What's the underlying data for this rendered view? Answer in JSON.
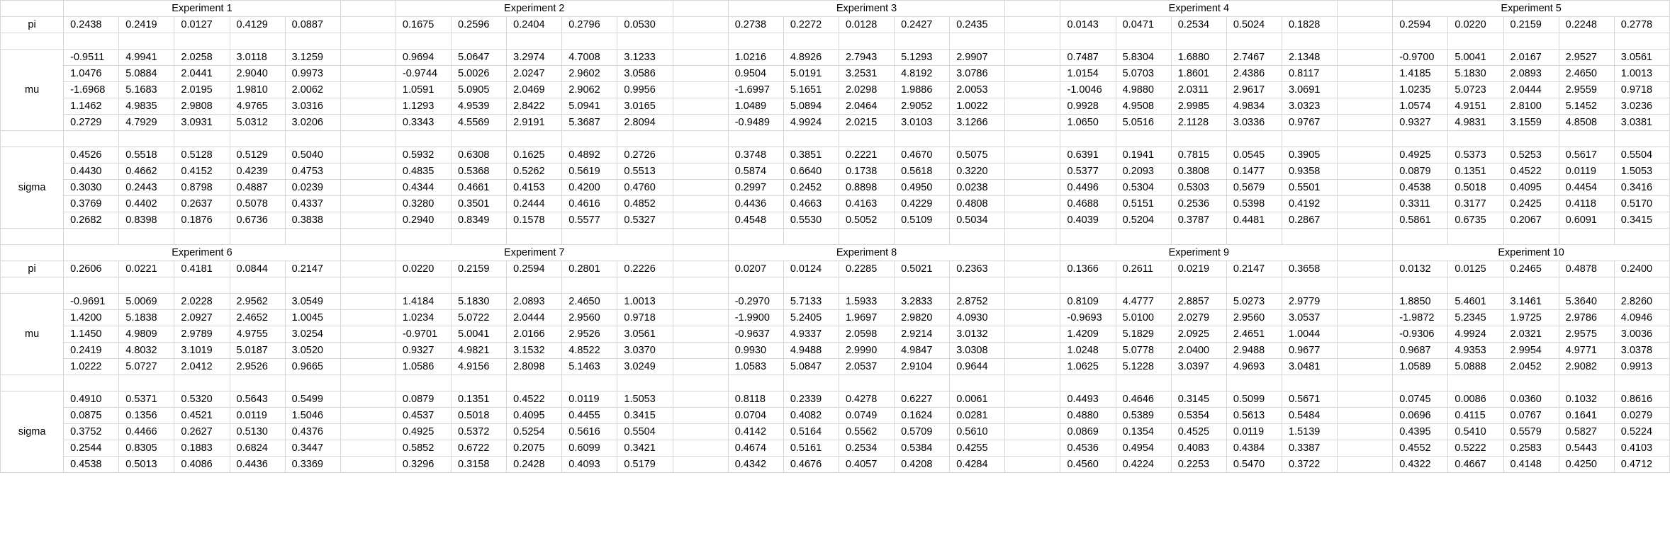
{
  "row_labels": {
    "pi": "pi",
    "mu": "mu",
    "sigma": "sigma"
  },
  "experiments": [
    {
      "title": "Experiment 1",
      "pi": [
        "0.2438",
        "0.2419",
        "0.0127",
        "0.4129",
        "0.0887"
      ],
      "mu": [
        [
          "-0.9511",
          "4.9941",
          "2.0258",
          "3.0118",
          "3.1259"
        ],
        [
          "1.0476",
          "5.0884",
          "2.0441",
          "2.9040",
          "0.9973"
        ],
        [
          "-1.6968",
          "5.1683",
          "2.0195",
          "1.9810",
          "2.0062"
        ],
        [
          "1.1462",
          "4.9835",
          "2.9808",
          "4.9765",
          "3.0316"
        ],
        [
          "0.2729",
          "4.7929",
          "3.0931",
          "5.0312",
          "3.0206"
        ]
      ],
      "sigma": [
        [
          "0.4526",
          "0.5518",
          "0.5128",
          "0.5129",
          "0.5040"
        ],
        [
          "0.4430",
          "0.4662",
          "0.4152",
          "0.4239",
          "0.4753"
        ],
        [
          "0.3030",
          "0.2443",
          "0.8798",
          "0.4887",
          "0.0239"
        ],
        [
          "0.3769",
          "0.4402",
          "0.2637",
          "0.5078",
          "0.4337"
        ],
        [
          "0.2682",
          "0.8398",
          "0.1876",
          "0.6736",
          "0.3838"
        ]
      ]
    },
    {
      "title": "Experiment 2",
      "pi": [
        "0.1675",
        "0.2596",
        "0.2404",
        "0.2796",
        "0.0530"
      ],
      "mu": [
        [
          "0.9694",
          "5.0647",
          "3.2974",
          "4.7008",
          "3.1233"
        ],
        [
          "-0.9744",
          "5.0026",
          "2.0247",
          "2.9602",
          "3.0586"
        ],
        [
          "1.0591",
          "5.0905",
          "2.0469",
          "2.9062",
          "0.9956"
        ],
        [
          "1.1293",
          "4.9539",
          "2.8422",
          "5.0941",
          "3.0165"
        ],
        [
          "0.3343",
          "4.5569",
          "2.9191",
          "5.3687",
          "2.8094"
        ]
      ],
      "sigma": [
        [
          "0.5932",
          "0.6308",
          "0.1625",
          "0.4892",
          "0.2726"
        ],
        [
          "0.4835",
          "0.5368",
          "0.5262",
          "0.5619",
          "0.5513"
        ],
        [
          "0.4344",
          "0.4661",
          "0.4153",
          "0.4200",
          "0.4760"
        ],
        [
          "0.3280",
          "0.3501",
          "0.2444",
          "0.4616",
          "0.4852"
        ],
        [
          "0.2940",
          "0.8349",
          "0.1578",
          "0.5577",
          "0.5327"
        ]
      ]
    },
    {
      "title": "Experiment 3",
      "pi": [
        "0.2738",
        "0.2272",
        "0.0128",
        "0.2427",
        "0.2435"
      ],
      "mu": [
        [
          "1.0216",
          "4.8926",
          "2.7943",
          "5.1293",
          "2.9907"
        ],
        [
          "0.9504",
          "5.0191",
          "3.2531",
          "4.8192",
          "3.0786"
        ],
        [
          "-1.6997",
          "5.1651",
          "2.0298",
          "1.9886",
          "2.0053"
        ],
        [
          "1.0489",
          "5.0894",
          "2.0464",
          "2.9052",
          "1.0022"
        ],
        [
          "-0.9489",
          "4.9924",
          "2.0215",
          "3.0103",
          "3.1266"
        ]
      ],
      "sigma": [
        [
          "0.3748",
          "0.3851",
          "0.2221",
          "0.4670",
          "0.5075"
        ],
        [
          "0.5874",
          "0.6640",
          "0.1738",
          "0.5618",
          "0.3220"
        ],
        [
          "0.2997",
          "0.2452",
          "0.8898",
          "0.4950",
          "0.0238"
        ],
        [
          "0.4436",
          "0.4663",
          "0.4163",
          "0.4229",
          "0.4808"
        ],
        [
          "0.4548",
          "0.5530",
          "0.5052",
          "0.5109",
          "0.5034"
        ]
      ]
    },
    {
      "title": "Experiment 4",
      "pi": [
        "0.0143",
        "0.0471",
        "0.2534",
        "0.5024",
        "0.1828"
      ],
      "mu": [
        [
          "0.7487",
          "5.8304",
          "1.6880",
          "2.7467",
          "2.1348"
        ],
        [
          "1.0154",
          "5.0703",
          "1.8601",
          "2.4386",
          "0.8117"
        ],
        [
          "-1.0046",
          "4.9880",
          "2.0311",
          "2.9617",
          "3.0691"
        ],
        [
          "0.9928",
          "4.9508",
          "2.9985",
          "4.9834",
          "3.0323"
        ],
        [
          "1.0650",
          "5.0516",
          "2.1128",
          "3.0336",
          "0.9767"
        ]
      ],
      "sigma": [
        [
          "0.6391",
          "0.1941",
          "0.7815",
          "0.0545",
          "0.3905"
        ],
        [
          "0.5377",
          "0.2093",
          "0.3808",
          "0.1477",
          "0.9358"
        ],
        [
          "0.4496",
          "0.5304",
          "0.5303",
          "0.5679",
          "0.5501"
        ],
        [
          "0.4688",
          "0.5151",
          "0.2536",
          "0.5398",
          "0.4192"
        ],
        [
          "0.4039",
          "0.5204",
          "0.3787",
          "0.4481",
          "0.2867"
        ]
      ]
    },
    {
      "title": "Experiment 5",
      "pi": [
        "0.2594",
        "0.0220",
        "0.2159",
        "0.2248",
        "0.2778"
      ],
      "mu": [
        [
          "-0.9700",
          "5.0041",
          "2.0167",
          "2.9527",
          "3.0561"
        ],
        [
          "1.4185",
          "5.1830",
          "2.0893",
          "2.4650",
          "1.0013"
        ],
        [
          "1.0235",
          "5.0723",
          "2.0444",
          "2.9559",
          "0.9718"
        ],
        [
          "1.0574",
          "4.9151",
          "2.8100",
          "5.1452",
          "3.0236"
        ],
        [
          "0.9327",
          "4.9831",
          "3.1559",
          "4.8508",
          "3.0381"
        ]
      ],
      "sigma": [
        [
          "0.4925",
          "0.5373",
          "0.5253",
          "0.5617",
          "0.5504"
        ],
        [
          "0.0879",
          "0.1351",
          "0.4522",
          "0.0119",
          "1.5053"
        ],
        [
          "0.4538",
          "0.5018",
          "0.4095",
          "0.4454",
          "0.3416"
        ],
        [
          "0.3311",
          "0.3177",
          "0.2425",
          "0.4118",
          "0.5170"
        ],
        [
          "0.5861",
          "0.6735",
          "0.2067",
          "0.6091",
          "0.3415"
        ]
      ]
    },
    {
      "title": "Experiment 6",
      "pi": [
        "0.2606",
        "0.0221",
        "0.4181",
        "0.0844",
        "0.2147"
      ],
      "mu": [
        [
          "-0.9691",
          "5.0069",
          "2.0228",
          "2.9562",
          "3.0549"
        ],
        [
          "1.4200",
          "5.1838",
          "2.0927",
          "2.4652",
          "1.0045"
        ],
        [
          "1.1450",
          "4.9809",
          "2.9789",
          "4.9755",
          "3.0254"
        ],
        [
          "0.2419",
          "4.8032",
          "3.1019",
          "5.0187",
          "3.0520"
        ],
        [
          "1.0222",
          "5.0727",
          "2.0412",
          "2.9526",
          "0.9665"
        ]
      ],
      "sigma": [
        [
          "0.4910",
          "0.5371",
          "0.5320",
          "0.5643",
          "0.5499"
        ],
        [
          "0.0875",
          "0.1356",
          "0.4521",
          "0.0119",
          "1.5046"
        ],
        [
          "0.3752",
          "0.4466",
          "0.2627",
          "0.5130",
          "0.4376"
        ],
        [
          "0.2544",
          "0.8305",
          "0.1883",
          "0.6824",
          "0.3447"
        ],
        [
          "0.4538",
          "0.5013",
          "0.4086",
          "0.4436",
          "0.3369"
        ]
      ]
    },
    {
      "title": "Experiment 7",
      "pi": [
        "0.0220",
        "0.2159",
        "0.2594",
        "0.2801",
        "0.2226"
      ],
      "mu": [
        [
          "1.4184",
          "5.1830",
          "2.0893",
          "2.4650",
          "1.0013"
        ],
        [
          "1.0234",
          "5.0722",
          "2.0444",
          "2.9560",
          "0.9718"
        ],
        [
          "-0.9701",
          "5.0041",
          "2.0166",
          "2.9526",
          "3.0561"
        ],
        [
          "0.9327",
          "4.9821",
          "3.1532",
          "4.8522",
          "3.0370"
        ],
        [
          "1.0586",
          "4.9156",
          "2.8098",
          "5.1463",
          "3.0249"
        ]
      ],
      "sigma": [
        [
          "0.0879",
          "0.1351",
          "0.4522",
          "0.0119",
          "1.5053"
        ],
        [
          "0.4537",
          "0.5018",
          "0.4095",
          "0.4455",
          "0.3415"
        ],
        [
          "0.4925",
          "0.5372",
          "0.5254",
          "0.5616",
          "0.5504"
        ],
        [
          "0.5852",
          "0.6722",
          "0.2075",
          "0.6099",
          "0.3421"
        ],
        [
          "0.3296",
          "0.3158",
          "0.2428",
          "0.4093",
          "0.5179"
        ]
      ]
    },
    {
      "title": "Experiment 8",
      "pi": [
        "0.0207",
        "0.0124",
        "0.2285",
        "0.5021",
        "0.2363"
      ],
      "mu": [
        [
          "-0.2970",
          "5.7133",
          "1.5933",
          "3.2833",
          "2.8752"
        ],
        [
          "-1.9900",
          "5.2405",
          "1.9697",
          "2.9820",
          "4.0930"
        ],
        [
          "-0.9637",
          "4.9337",
          "2.0598",
          "2.9214",
          "3.0132"
        ],
        [
          "0.9930",
          "4.9488",
          "2.9990",
          "4.9847",
          "3.0308"
        ],
        [
          "1.0583",
          "5.0847",
          "2.0537",
          "2.9104",
          "0.9644"
        ]
      ],
      "sigma": [
        [
          "0.8118",
          "0.2339",
          "0.4278",
          "0.6227",
          "0.0061"
        ],
        [
          "0.0704",
          "0.4082",
          "0.0749",
          "0.1624",
          "0.0281"
        ],
        [
          "0.4142",
          "0.5164",
          "0.5562",
          "0.5709",
          "0.5610"
        ],
        [
          "0.4674",
          "0.5161",
          "0.2534",
          "0.5384",
          "0.4255"
        ],
        [
          "0.4342",
          "0.4676",
          "0.4057",
          "0.4208",
          "0.4284"
        ]
      ]
    },
    {
      "title": "Experiment 9",
      "pi": [
        "0.1366",
        "0.2611",
        "0.0219",
        "0.2147",
        "0.3658"
      ],
      "mu": [
        [
          "0.8109",
          "4.4777",
          "2.8857",
          "5.0273",
          "2.9779"
        ],
        [
          "-0.9693",
          "5.0100",
          "2.0279",
          "2.9560",
          "3.0537"
        ],
        [
          "1.4209",
          "5.1829",
          "2.0925",
          "2.4651",
          "1.0044"
        ],
        [
          "1.0248",
          "5.0778",
          "2.0400",
          "2.9488",
          "0.9677"
        ],
        [
          "1.0625",
          "5.1228",
          "3.0397",
          "4.9693",
          "3.0481"
        ]
      ],
      "sigma": [
        [
          "0.4493",
          "0.4646",
          "0.3145",
          "0.5099",
          "0.5671"
        ],
        [
          "0.4880",
          "0.5389",
          "0.5354",
          "0.5613",
          "0.5484"
        ],
        [
          "0.0869",
          "0.1354",
          "0.4525",
          "0.0119",
          "1.5139"
        ],
        [
          "0.4536",
          "0.4954",
          "0.4083",
          "0.4384",
          "0.3387"
        ],
        [
          "0.4560",
          "0.4224",
          "0.2253",
          "0.5470",
          "0.3722"
        ]
      ]
    },
    {
      "title": "Experiment 10",
      "pi": [
        "0.0132",
        "0.0125",
        "0.2465",
        "0.4878",
        "0.2400"
      ],
      "mu": [
        [
          "1.8850",
          "5.4601",
          "3.1461",
          "5.3640",
          "2.8260"
        ],
        [
          "-1.9872",
          "5.2345",
          "1.9725",
          "2.9786",
          "4.0946"
        ],
        [
          "-0.9306",
          "4.9924",
          "2.0321",
          "2.9575",
          "3.0036"
        ],
        [
          "0.9687",
          "4.9353",
          "2.9954",
          "4.9771",
          "3.0378"
        ],
        [
          "1.0589",
          "5.0888",
          "2.0452",
          "2.9082",
          "0.9913"
        ]
      ],
      "sigma": [
        [
          "0.0745",
          "0.0086",
          "0.0360",
          "0.1032",
          "0.8616"
        ],
        [
          "0.0696",
          "0.4115",
          "0.0767",
          "0.1641",
          "0.0279"
        ],
        [
          "0.4395",
          "0.5410",
          "0.5579",
          "0.5827",
          "0.5224"
        ],
        [
          "0.4552",
          "0.5222",
          "0.2583",
          "0.5443",
          "0.4103"
        ],
        [
          "0.4322",
          "0.4667",
          "0.4148",
          "0.4250",
          "0.4712"
        ]
      ]
    }
  ]
}
